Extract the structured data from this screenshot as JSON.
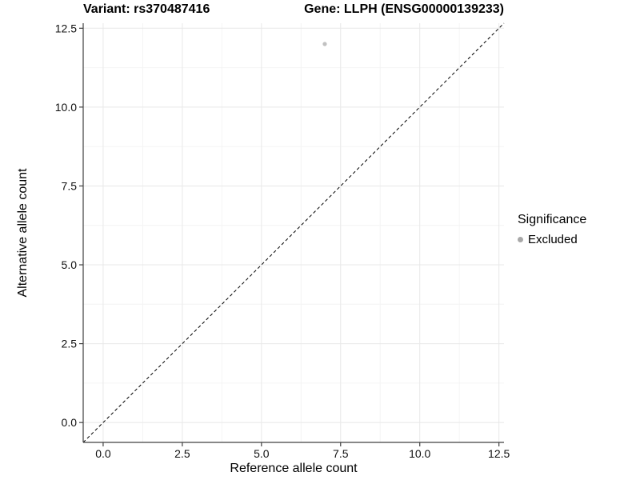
{
  "titles": {
    "variant": "Variant: rs370487416",
    "gene": "Gene: LLPH (ENSG00000139233)"
  },
  "chart_data": {
    "type": "scatter",
    "xlabel": "Reference allele count",
    "ylabel": "Alternative allele count",
    "xlim": [
      -0.63,
      12.66
    ],
    "ylim": [
      -0.63,
      12.66
    ],
    "xticks": {
      "values": [
        0,
        2.5,
        5,
        7.5,
        10,
        12.5
      ],
      "labels": [
        "0.0",
        "2.5",
        "5.0",
        "7.5",
        "10.0",
        "12.5"
      ]
    },
    "yticks": {
      "values": [
        0,
        2.5,
        5,
        7.5,
        10,
        12.5
      ],
      "labels": [
        "0.0",
        "2.5",
        "5.0",
        "7.5",
        "10.0",
        "12.5"
      ]
    },
    "minor_ticks": [
      1.25,
      3.75,
      6.25,
      8.75,
      11.25
    ],
    "points": [
      {
        "x": 7,
        "y": 12,
        "significance": "Excluded"
      }
    ],
    "reference_line": {
      "slope": 1,
      "intercept": 0,
      "style": "dashed"
    },
    "grid": "major+minor",
    "legend_position": "right"
  },
  "legend": {
    "title": "Significance",
    "items": [
      {
        "label": "Excluded",
        "color": "#a8a8a8"
      }
    ]
  },
  "colors": {
    "point": "#c1c1c1",
    "legend_point": "#a8a8a8",
    "grid_major": "#e8e8e8",
    "grid_minor": "#f4f4f4",
    "axis_line": "#404040",
    "dashed_line": "#000000",
    "tick_text": "#111111"
  }
}
